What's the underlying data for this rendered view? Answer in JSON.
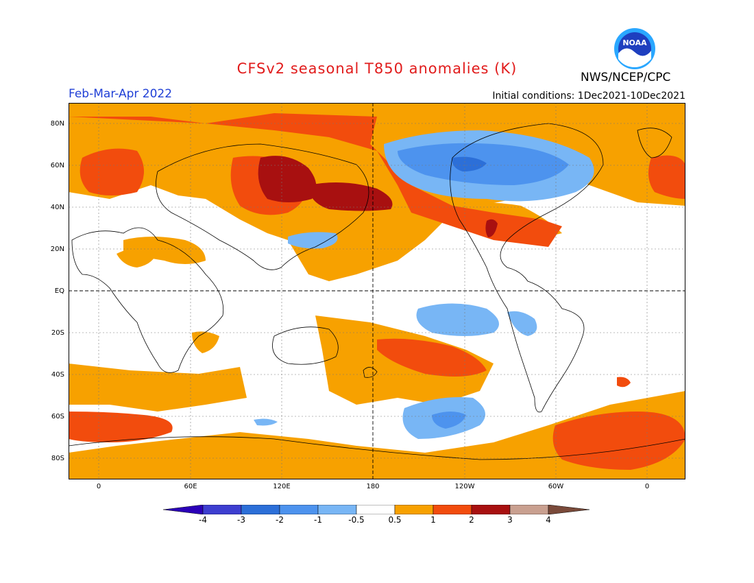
{
  "header": {
    "title": "CFSv2 seasonal T850 anomalies (K)",
    "title_color": "#e11b1b",
    "season": "Feb-Mar-Apr 2022",
    "season_color": "#1f3fd6",
    "initial_conditions": "Initial conditions: 1Dec2021-10Dec2021",
    "agency": "NWS/NCEP/CPC",
    "logo_text": "NOAA"
  },
  "map": {
    "lat_ticks": [
      "80N",
      "60N",
      "40N",
      "20N",
      "EQ",
      "20S",
      "40S",
      "60S",
      "80S"
    ],
    "lon_ticks": [
      "0",
      "60E",
      "120E",
      "180",
      "120W",
      "60W",
      "0"
    ]
  },
  "colorbar": {
    "labels": [
      "-4",
      "-3",
      "-2",
      "-1",
      "-0.5",
      "0.5",
      "1",
      "2",
      "3",
      "4"
    ],
    "colors": [
      "#2b00b8",
      "#3d3ed0",
      "#2c6fd8",
      "#4d93ee",
      "#78b6f5",
      "#ffffff",
      "#f7a100",
      "#f24c0d",
      "#a81010",
      "#c9a090",
      "#7a4a3a"
    ]
  }
}
